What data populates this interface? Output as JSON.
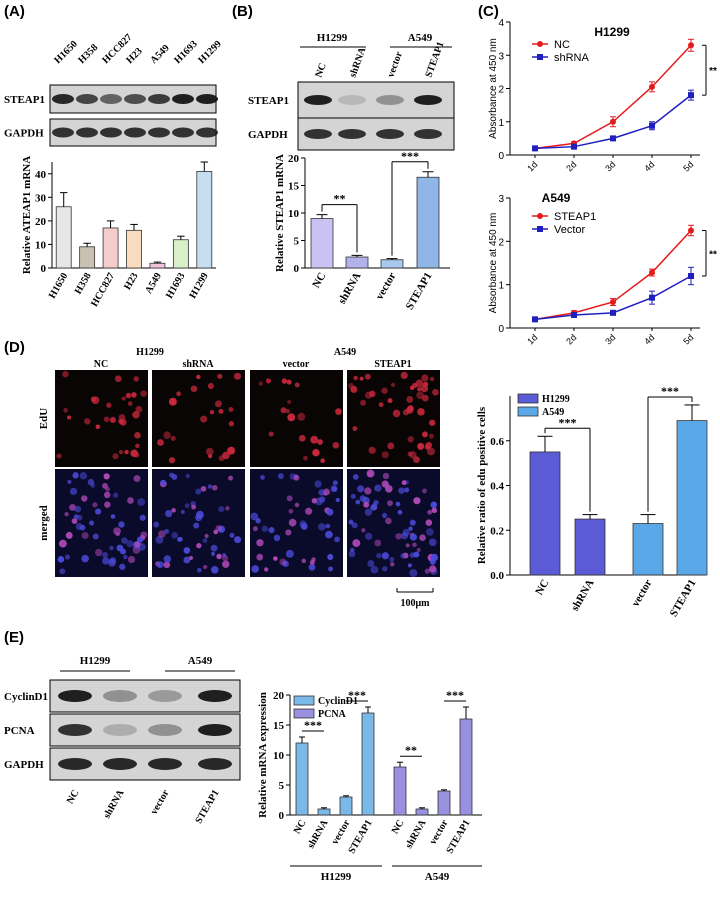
{
  "panel_labels": [
    "(A)",
    "(B)",
    "(C)",
    "(D)",
    "(E)"
  ],
  "blots": {
    "a": {
      "lanes": [
        "H1650",
        "H358",
        "HCC827",
        "H23",
        "A549",
        "H1693",
        "H1299"
      ],
      "rows": [
        "STEAP1",
        "GAPDH"
      ]
    },
    "b": {
      "groups": [
        "H1299",
        "A549"
      ],
      "lanes": [
        "NC",
        "shRNA",
        "vector",
        "STEAP1"
      ],
      "rows": [
        "STEAP1",
        "GAPDH"
      ]
    },
    "d": {
      "groups": [
        "H1299",
        "A549"
      ],
      "columns": [
        "NC",
        "shRNA",
        "vector",
        "STEAP1"
      ],
      "rows": [
        "EdU",
        "merged"
      ],
      "scale_bar": "100μm"
    },
    "e": {
      "groups": [
        "H1299",
        "A549"
      ],
      "rows": [
        "CyclinD1",
        "PCNA",
        "GAPDH"
      ],
      "lanes": [
        "NC",
        "shRNA",
        "vector",
        "STEAP1"
      ]
    }
  },
  "chart_data": [
    {
      "type": "bar",
      "ylabel": "Relative ATEAP1 mRNA",
      "categories": [
        "H1650",
        "H358",
        "HCC827",
        "H23",
        "A549",
        "H1693",
        "H1299"
      ],
      "values": [
        26,
        9,
        17,
        16,
        2,
        12,
        41
      ],
      "errors": [
        6,
        1.5,
        3,
        2.5,
        0.5,
        1.5,
        4
      ],
      "colors": [
        "#e6e6e6",
        "#c9c2b2",
        "#f5cccc",
        "#f8dcc0",
        "#f3c3da",
        "#d8efc8",
        "#c6def2"
      ],
      "ylim": [
        0,
        45
      ],
      "yticks": [
        0,
        10,
        20,
        30,
        40
      ]
    },
    {
      "type": "bar",
      "ylabel": "Relative STEAP1 mRNA",
      "categories": [
        "NC",
        "shRNA",
        "vector",
        "STEAP1"
      ],
      "values": [
        9,
        2,
        1.5,
        16.5
      ],
      "errors": [
        0.7,
        0.3,
        0.2,
        1.0
      ],
      "colors": [
        "#c9c2f2",
        "#b3b1ea",
        "#a9c8f0",
        "#8fb6e6"
      ],
      "ylim": [
        0,
        20
      ],
      "yticks": [
        0,
        5,
        10,
        15,
        20
      ],
      "annotations": [
        "**",
        "***"
      ]
    },
    {
      "type": "line",
      "title": "H1299",
      "ylabel": "Absorbance at 450 nm",
      "categories": [
        "1d",
        "2d",
        "3d",
        "4d",
        "5d"
      ],
      "series": [
        {
          "name": "NC",
          "color": "#e41a1c",
          "values": [
            0.2,
            0.35,
            1.0,
            2.05,
            3.3
          ],
          "errors": [
            0.03,
            0.05,
            0.15,
            0.15,
            0.18
          ]
        },
        {
          "name": "shRNA",
          "color": "#1f1fbf",
          "values": [
            0.2,
            0.25,
            0.5,
            0.88,
            1.8
          ],
          "errors": [
            0.03,
            0.03,
            0.05,
            0.12,
            0.15
          ]
        }
      ],
      "ylim": [
        0,
        4
      ],
      "yticks": [
        0,
        1,
        2,
        3,
        4
      ],
      "annotations": [
        "**"
      ]
    },
    {
      "type": "line",
      "title": "A549",
      "ylabel": "Absorbance at 450 nm",
      "categories": [
        "1d",
        "2d",
        "3d",
        "4d",
        "5d"
      ],
      "series": [
        {
          "name": "STEAP1",
          "color": "#e41a1c",
          "values": [
            0.2,
            0.35,
            0.6,
            1.28,
            2.25
          ],
          "errors": [
            0.03,
            0.05,
            0.08,
            0.08,
            0.12
          ]
        },
        {
          "name": "Vector",
          "color": "#1f1fbf",
          "values": [
            0.2,
            0.3,
            0.35,
            0.7,
            1.2
          ],
          "errors": [
            0.03,
            0.03,
            0.03,
            0.15,
            0.2
          ]
        }
      ],
      "ylim": [
        0,
        3
      ],
      "yticks": [
        0,
        1,
        2,
        3
      ],
      "annotations": [
        "**"
      ]
    },
    {
      "type": "bar",
      "ylabel": "Relative ratio of edu positive cells",
      "categories": [
        "NC",
        "shRNA",
        "vector",
        "STEAP1"
      ],
      "series": [
        {
          "name": "H1299",
          "color": "#5b5bd6",
          "values": [
            0.55,
            0.25,
            null,
            null
          ],
          "errors": [
            0.07,
            0.02,
            null,
            null
          ]
        },
        {
          "name": "A549",
          "color": "#5aa8e8",
          "values": [
            null,
            null,
            0.23,
            0.69
          ],
          "errors": [
            null,
            null,
            0.04,
            0.07
          ]
        }
      ],
      "ylim": [
        0,
        0.8
      ],
      "yticks": [
        {
          "value": 0,
          "label": "0.0"
        },
        {
          "value": 0.2,
          "label": "0.2"
        },
        {
          "value": 0.4,
          "label": "0.4"
        },
        {
          "value": 0.6,
          "label": "0.6"
        }
      ],
      "annotations": [
        "***",
        "***"
      ]
    },
    {
      "type": "bar",
      "ylabel": "Relative mRNA expression",
      "categories": [
        "NC",
        "shRNA",
        "vector",
        "STEAP1",
        "NC",
        "shRNA",
        "vector",
        "STEAP1"
      ],
      "groups": [
        "H1299",
        "A549"
      ],
      "series": [
        {
          "name": "CyclinD1",
          "color": "#7ab8e8",
          "values": [
            12,
            1,
            3,
            17,
            null,
            null,
            null,
            null
          ],
          "errors": [
            1,
            0.2,
            0.2,
            1,
            null,
            null,
            null,
            null
          ]
        },
        {
          "name": "PCNA",
          "color": "#9a90e0",
          "values": [
            null,
            null,
            null,
            null,
            8,
            1,
            4,
            16
          ],
          "errors": [
            null,
            null,
            null,
            null,
            0.8,
            0.2,
            0.2,
            2
          ]
        }
      ],
      "ylim": [
        0,
        20
      ],
      "yticks": [
        0,
        5,
        10,
        15,
        20
      ],
      "annotations": [
        "***",
        "***",
        "**",
        "***"
      ]
    }
  ]
}
